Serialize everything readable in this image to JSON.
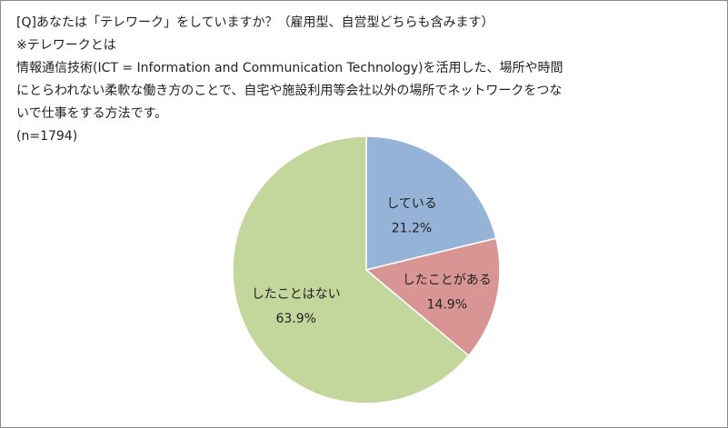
{
  "question": {
    "lines": [
      "[Q]あなたは「テレワーク」をしていますか？（雇用型、自営型どちらも含みます）",
      "※テレワークとは",
      "情報通信技術(ICT = Information and Communication Technology)を活用した、場所や時間",
      "にとらわれない柔軟な働き方のことで、自宅や施設利用等会社以外の場所でネットワークをつな",
      "いで仕事をする方法です。",
      "(n=1794)"
    ]
  },
  "chart_data": {
    "type": "pie",
    "slices": [
      {
        "name": "している",
        "value": 21.2,
        "label": "21.2%",
        "color": "#95b3d7"
      },
      {
        "name": "したことがある",
        "value": 14.9,
        "label": "14.9%",
        "color": "#d99594"
      },
      {
        "name": "したことはない",
        "value": 63.9,
        "label": "63.9%",
        "color": "#c3d69b"
      }
    ],
    "start": "12 o'clock",
    "direction": "clockwise",
    "legend": "none",
    "labels": "inside"
  }
}
